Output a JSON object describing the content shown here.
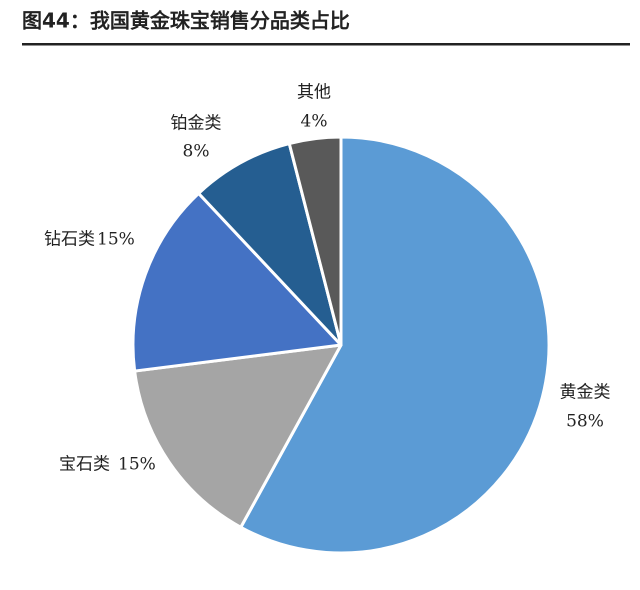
{
  "chart_data": {
    "type": "pie",
    "title": "图44：我国黄金珠宝销售分品类占比",
    "categories": [
      "黄金类",
      "宝石类",
      "钻石类",
      "铂金类",
      "其他"
    ],
    "values": [
      58,
      15,
      15,
      8,
      4
    ],
    "value_labels": [
      "58%",
      "15%",
      "15%",
      "8%",
      "4%"
    ],
    "colors": [
      "#5b9bd5",
      "#a5a5a5",
      "#4472c4",
      "#255e91",
      "#595959"
    ]
  }
}
